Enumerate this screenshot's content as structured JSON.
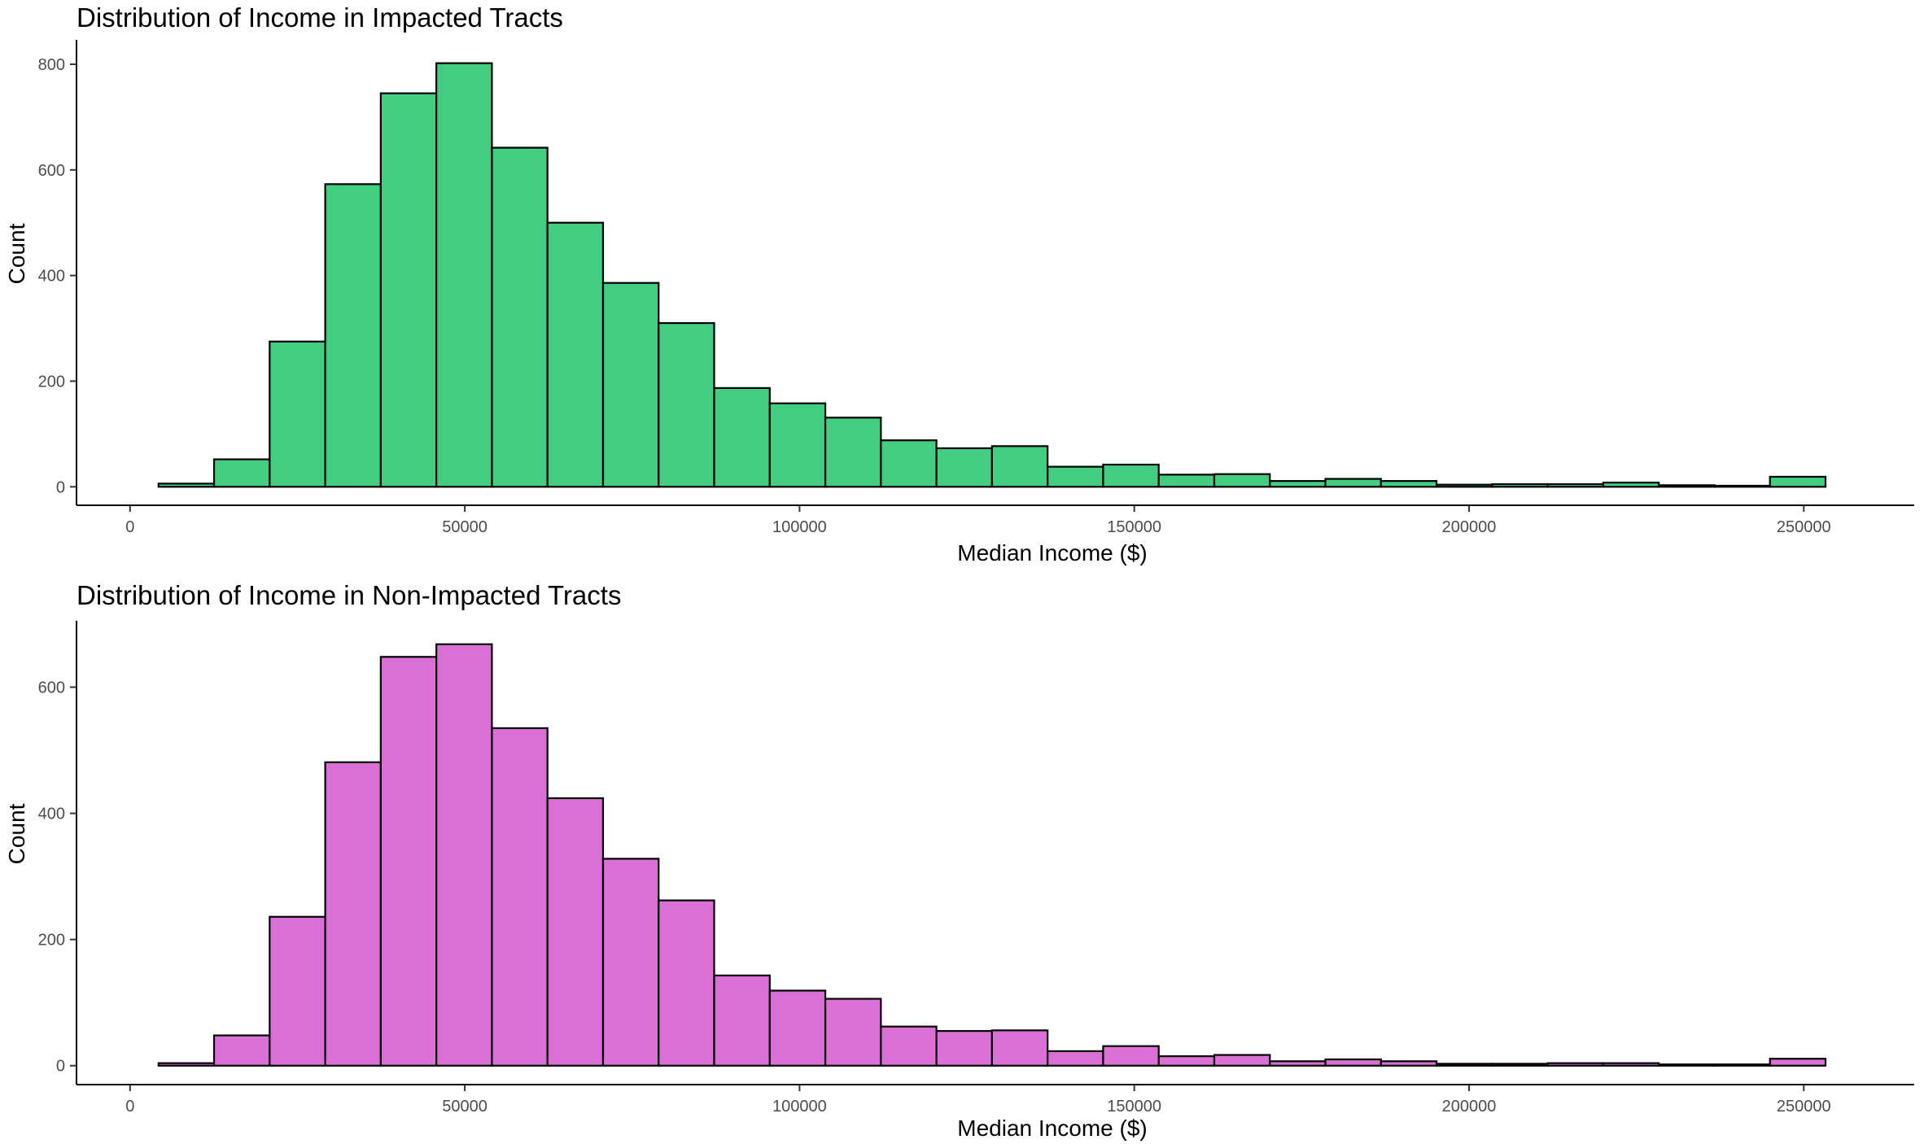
{
  "chart_data": [
    {
      "type": "bar",
      "title": "Distribution of Income in Impacted Tracts",
      "xlabel": "Median Income ($)",
      "ylabel": "Count",
      "bar_color": "#43CD80",
      "outline_color": "#000000",
      "grid": false,
      "xlim": [
        -8000,
        266500
      ],
      "ylim": [
        -35,
        840
      ],
      "x_ticks": [
        0,
        50000,
        100000,
        150000,
        200000,
        250000
      ],
      "y_ticks": [
        0,
        200,
        400,
        600,
        800
      ],
      "bin_start": 4250,
      "bin_width": 8300,
      "values": [
        6,
        52,
        275,
        573,
        745,
        802,
        642,
        500,
        386,
        310,
        187,
        158,
        131,
        88,
        73,
        77,
        38,
        42,
        23,
        24,
        11,
        15,
        11,
        4,
        5,
        5,
        8,
        3,
        2,
        19
      ]
    },
    {
      "type": "bar",
      "title": "Distribution of Income in Non-Impacted Tracts",
      "xlabel": "Median Income ($)",
      "ylabel": "Count",
      "bar_color": "#DA70D6",
      "outline_color": "#000000",
      "grid": false,
      "xlim": [
        -8000,
        266500
      ],
      "ylim": [
        -30,
        700
      ],
      "x_ticks": [
        0,
        50000,
        100000,
        150000,
        200000,
        250000
      ],
      "y_ticks": [
        0,
        200,
        400,
        600
      ],
      "bin_start": 4250,
      "bin_width": 8300,
      "values": [
        4,
        48,
        236,
        481,
        648,
        668,
        535,
        424,
        328,
        262,
        143,
        119,
        106,
        62,
        55,
        56,
        23,
        31,
        15,
        17,
        7,
        10,
        7,
        3,
        3,
        4,
        4,
        2,
        2,
        11
      ]
    }
  ]
}
